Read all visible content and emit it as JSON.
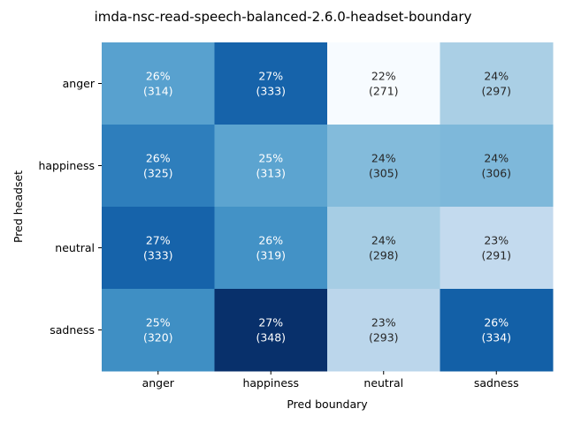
{
  "chart_data": {
    "type": "heatmap",
    "title": "imda-nsc-read-speech-balanced-2.6.0-headset-boundary",
    "xlabel": "Pred boundary",
    "ylabel": "Pred headset",
    "x_categories": [
      "anger",
      "happiness",
      "neutral",
      "sadness"
    ],
    "y_categories": [
      "anger",
      "happiness",
      "neutral",
      "sadness"
    ],
    "counts": [
      [
        314,
        333,
        271,
        297
      ],
      [
        325,
        313,
        305,
        306
      ],
      [
        333,
        319,
        298,
        291
      ],
      [
        320,
        348,
        293,
        334
      ]
    ],
    "percent_labels": [
      [
        "26%",
        "27%",
        "22%",
        "24%"
      ],
      [
        "26%",
        "25%",
        "24%",
        "24%"
      ],
      [
        "27%",
        "26%",
        "24%",
        "23%"
      ],
      [
        "25%",
        "27%",
        "23%",
        "26%"
      ]
    ],
    "count_labels": [
      [
        "(314)",
        "(333)",
        "(271)",
        "(297)"
      ],
      [
        "(325)",
        "(313)",
        "(305)",
        "(306)"
      ],
      [
        "(333)",
        "(319)",
        "(298)",
        "(291)"
      ],
      [
        "(320)",
        "(348)",
        "(293)",
        "(334)"
      ]
    ],
    "colormap": "Blues",
    "colorbar": false
  }
}
